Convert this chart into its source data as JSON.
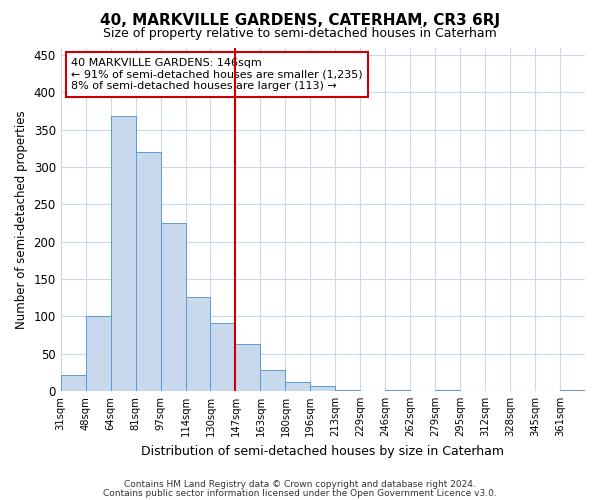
{
  "title": "40, MARKVILLE GARDENS, CATERHAM, CR3 6RJ",
  "subtitle": "Size of property relative to semi-detached houses in Caterham",
  "xlabel": "Distribution of semi-detached houses by size in Caterham",
  "ylabel": "Number of semi-detached properties",
  "bar_values": [
    22,
    100,
    368,
    320,
    225,
    126,
    91,
    63,
    28,
    12,
    7,
    1,
    0,
    1,
    0,
    1,
    0,
    0,
    0,
    0,
    1
  ],
  "bin_labels": [
    "31sqm",
    "48sqm",
    "64sqm",
    "81sqm",
    "97sqm",
    "114sqm",
    "130sqm",
    "147sqm",
    "163sqm",
    "180sqm",
    "196sqm",
    "213sqm",
    "229sqm",
    "246sqm",
    "262sqm",
    "279sqm",
    "295sqm",
    "312sqm",
    "328sqm",
    "345sqm",
    "361sqm"
  ],
  "bar_color": "#c8d9ed",
  "bar_edge_color": "#5b9bd5",
  "vline_x": 7,
  "vline_color": "#cc0000",
  "ylim": [
    0,
    460
  ],
  "yticks": [
    0,
    50,
    100,
    150,
    200,
    250,
    300,
    350,
    400,
    450
  ],
  "annotation_title": "40 MARKVILLE GARDENS: 146sqm",
  "annotation_line1": "← 91% of semi-detached houses are smaller (1,235)",
  "annotation_line2": "8% of semi-detached houses are larger (113) →",
  "footnote1": "Contains HM Land Registry data © Crown copyright and database right 2024.",
  "footnote2": "Contains public sector information licensed under the Open Government Licence v3.0.",
  "background_color": "#ffffff",
  "grid_color": "#c8d9ed"
}
